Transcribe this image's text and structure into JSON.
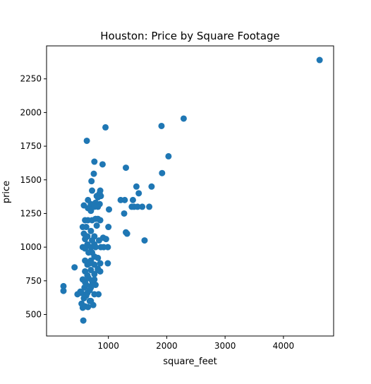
{
  "chart_data": {
    "type": "scatter",
    "title": "Houston: Price by Square Footage",
    "xlabel": "square_feet",
    "ylabel": "price",
    "xlim": [
      -60,
      4860
    ],
    "ylim": [
      340,
      2495
    ],
    "xticks": [
      1000,
      2000,
      3000,
      4000
    ],
    "yticks": [
      500,
      750,
      1000,
      1250,
      1500,
      1750,
      2000,
      2250
    ],
    "grid": false,
    "legend": "none",
    "marker_color": "#1f77b4",
    "points": [
      [
        4620,
        2390
      ],
      [
        2290,
        1955
      ],
      [
        1910,
        1900
      ],
      [
        1920,
        1550
      ],
      [
        2030,
        1675
      ],
      [
        1740,
        1450
      ],
      [
        1700,
        1300
      ],
      [
        1620,
        1050
      ],
      [
        1580,
        1300
      ],
      [
        1500,
        1300
      ],
      [
        1520,
        1400
      ],
      [
        1480,
        1450
      ],
      [
        1440,
        1300
      ],
      [
        1420,
        1350
      ],
      [
        1400,
        1300
      ],
      [
        1320,
        1100
      ],
      [
        1300,
        1110
      ],
      [
        1300,
        1590
      ],
      [
        1280,
        1350
      ],
      [
        1270,
        1250
      ],
      [
        1210,
        1350
      ],
      [
        950,
        1890
      ],
      [
        900,
        1615
      ],
      [
        630,
        1790
      ],
      [
        760,
        1635
      ],
      [
        750,
        1545
      ],
      [
        710,
        1490
      ],
      [
        720,
        1420
      ],
      [
        1010,
        1280
      ],
      [
        1000,
        1150
      ],
      [
        990,
        1000
      ],
      [
        990,
        880
      ],
      [
        960,
        1060
      ],
      [
        920,
        1000
      ],
      [
        910,
        1070
      ],
      [
        860,
        1420
      ],
      [
        870,
        1380
      ],
      [
        850,
        1400
      ],
      [
        820,
        1370
      ],
      [
        800,
        1380
      ],
      [
        850,
        1320
      ],
      [
        820,
        1300
      ],
      [
        780,
        1330
      ],
      [
        740,
        1310
      ],
      [
        700,
        1320
      ],
      [
        650,
        1350
      ],
      [
        580,
        1310
      ],
      [
        650,
        1290
      ],
      [
        700,
        1270
      ],
      [
        760,
        1300
      ],
      [
        560,
        1150
      ],
      [
        600,
        1200
      ],
      [
        650,
        1200
      ],
      [
        720,
        1200
      ],
      [
        780,
        1210
      ],
      [
        820,
        1210
      ],
      [
        860,
        1200
      ],
      [
        580,
        1100
      ],
      [
        620,
        1150
      ],
      [
        700,
        1120
      ],
      [
        760,
        1080
      ],
      [
        800,
        1160
      ],
      [
        640,
        1080
      ],
      [
        720,
        1050
      ],
      [
        780,
        1000
      ],
      [
        840,
        1050
      ],
      [
        870,
        1000
      ],
      [
        560,
        1000
      ],
      [
        600,
        990
      ],
      [
        660,
        960
      ],
      [
        700,
        1000
      ],
      [
        760,
        930
      ],
      [
        820,
        920
      ],
      [
        860,
        880
      ],
      [
        600,
        900
      ],
      [
        640,
        870
      ],
      [
        700,
        900
      ],
      [
        760,
        870
      ],
      [
        820,
        840
      ],
      [
        860,
        820
      ],
      [
        600,
        820
      ],
      [
        640,
        790
      ],
      [
        700,
        830
      ],
      [
        760,
        800
      ],
      [
        820,
        830
      ],
      [
        560,
        760
      ],
      [
        600,
        740
      ],
      [
        660,
        770
      ],
      [
        720,
        750
      ],
      [
        780,
        720
      ],
      [
        590,
        700
      ],
      [
        640,
        660
      ],
      [
        700,
        700
      ],
      [
        760,
        650
      ],
      [
        830,
        650
      ],
      [
        540,
        660
      ],
      [
        580,
        620
      ],
      [
        620,
        640
      ],
      [
        680,
        600
      ],
      [
        740,
        570
      ],
      [
        540,
        580
      ],
      [
        560,
        550
      ],
      [
        600,
        560
      ],
      [
        650,
        555
      ],
      [
        700,
        600
      ],
      [
        520,
        670
      ],
      [
        470,
        650
      ],
      [
        570,
        455
      ],
      [
        420,
        850
      ],
      [
        230,
        710
      ],
      [
        230,
        675
      ],
      [
        620,
        720
      ],
      [
        680,
        680
      ],
      [
        720,
        720
      ],
      [
        760,
        760
      ],
      [
        680,
        880
      ],
      [
        720,
        960
      ],
      [
        760,
        1020
      ],
      [
        640,
        1020
      ],
      [
        600,
        1060
      ]
    ]
  }
}
